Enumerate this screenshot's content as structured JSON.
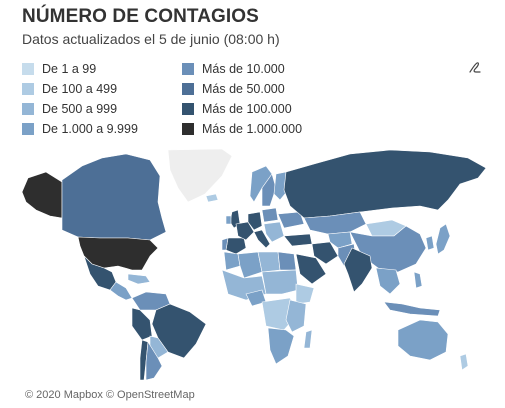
{
  "header": {
    "title": "NÚMERO DE CONTAGIOS",
    "subtitle": "Datos actualizados el 5 de junio (08:00 h)"
  },
  "legend": {
    "items": [
      {
        "label": "De 1 a 99",
        "color": "#c6dcec"
      },
      {
        "label": "De 100 a 499",
        "color": "#aecbe3"
      },
      {
        "label": "De 500 a 999",
        "color": "#94b6d6"
      },
      {
        "label": "De 1.000 a 9.999",
        "color": "#7ba1c7"
      },
      {
        "label": "Más de 10.000",
        "color": "#6b8fb8"
      },
      {
        "label": "Más de 50.000",
        "color": "#4d6f96"
      },
      {
        "label": "Más de 100.000",
        "color": "#34536f"
      },
      {
        "label": "Más de 1.000.000",
        "color": "#2e2e2e"
      }
    ]
  },
  "toolbar": {
    "edit_icon": "pen-icon"
  },
  "map": {
    "attribution": "© 2020 Mapbox © OpenStreetMap"
  }
}
